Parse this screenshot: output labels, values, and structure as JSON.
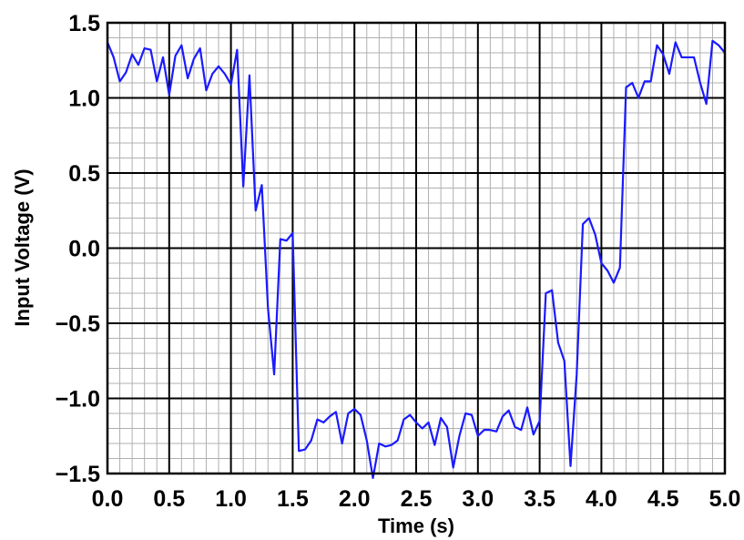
{
  "chart_data": {
    "type": "line",
    "title": "",
    "xlabel": "Time (s)",
    "ylabel": "Input Voltage (V)",
    "xlim": [
      0,
      5
    ],
    "ylim": [
      -1.5,
      1.5
    ],
    "xticks": [
      0,
      0.5,
      1,
      1.5,
      2,
      2.5,
      3,
      3.5,
      4,
      4.5,
      5
    ],
    "yticks": [
      -1.5,
      -1,
      -0.5,
      0,
      0.5,
      1,
      1.5
    ],
    "xtick_labels": [
      "0.0",
      "0.5",
      "1.0",
      "1.5",
      "2.0",
      "2.5",
      "3.0",
      "3.5",
      "4.0",
      "4.5",
      "5.0"
    ],
    "ytick_labels": [
      "−1.5",
      "−1.0",
      "−0.5",
      "0.0",
      "0.5",
      "1.0",
      "1.5"
    ],
    "grid": {
      "major": true,
      "minor": true,
      "minor_per_major": 5
    },
    "series": [
      {
        "color": "#1a1aff",
        "x": [
          0.0,
          0.05,
          0.1,
          0.15,
          0.2,
          0.25,
          0.3,
          0.35,
          0.4,
          0.45,
          0.5,
          0.55,
          0.6,
          0.65,
          0.7,
          0.75,
          0.8,
          0.85,
          0.9,
          0.95,
          1.0,
          1.05,
          1.1,
          1.15,
          1.2,
          1.25,
          1.3,
          1.35,
          1.4,
          1.45,
          1.5,
          1.55,
          1.6,
          1.65,
          1.7,
          1.75,
          1.8,
          1.85,
          1.9,
          1.95,
          2.0,
          2.05,
          2.1,
          2.15,
          2.2,
          2.25,
          2.3,
          2.35,
          2.4,
          2.45,
          2.5,
          2.55,
          2.6,
          2.65,
          2.7,
          2.75,
          2.8,
          2.85,
          2.9,
          2.95,
          3.0,
          3.05,
          3.1,
          3.15,
          3.2,
          3.25,
          3.3,
          3.35,
          3.4,
          3.45,
          3.5,
          3.55,
          3.6,
          3.65,
          3.7,
          3.75,
          3.8,
          3.85,
          3.9,
          3.95,
          4.0,
          4.05,
          4.1,
          4.15,
          4.2,
          4.25,
          4.3,
          4.35,
          4.4,
          4.45,
          4.5,
          4.55,
          4.6,
          4.65,
          4.7,
          4.75,
          4.8,
          4.85,
          4.9,
          4.95,
          5.0
        ],
        "y": [
          1.37,
          1.27,
          1.11,
          1.17,
          1.29,
          1.22,
          1.33,
          1.32,
          1.11,
          1.27,
          1.02,
          1.28,
          1.35,
          1.13,
          1.26,
          1.33,
          1.05,
          1.16,
          1.21,
          1.16,
          1.09,
          1.32,
          0.41,
          1.15,
          0.25,
          0.42,
          -0.4,
          -0.84,
          0.06,
          0.05,
          0.1,
          -1.35,
          -1.34,
          -1.28,
          -1.14,
          -1.16,
          -1.12,
          -1.09,
          -1.3,
          -1.1,
          -1.07,
          -1.11,
          -1.28,
          -1.53,
          -1.3,
          -1.32,
          -1.31,
          -1.28,
          -1.14,
          -1.11,
          -1.16,
          -1.2,
          -1.16,
          -1.31,
          -1.13,
          -1.19,
          -1.46,
          -1.25,
          -1.1,
          -1.11,
          -1.25,
          -1.21,
          -1.21,
          -1.22,
          -1.12,
          -1.08,
          -1.19,
          -1.21,
          -1.06,
          -1.24,
          -1.15,
          -0.3,
          -0.28,
          -0.63,
          -0.75,
          -1.45,
          -0.84,
          0.16,
          0.2,
          0.09,
          -0.1,
          -0.15,
          -0.23,
          -0.13,
          1.07,
          1.1,
          1.0,
          1.11,
          1.11,
          1.35,
          1.29,
          1.16,
          1.37,
          1.27,
          1.27,
          1.27,
          1.1,
          0.96,
          1.38,
          1.35,
          1.3
        ]
      }
    ]
  }
}
